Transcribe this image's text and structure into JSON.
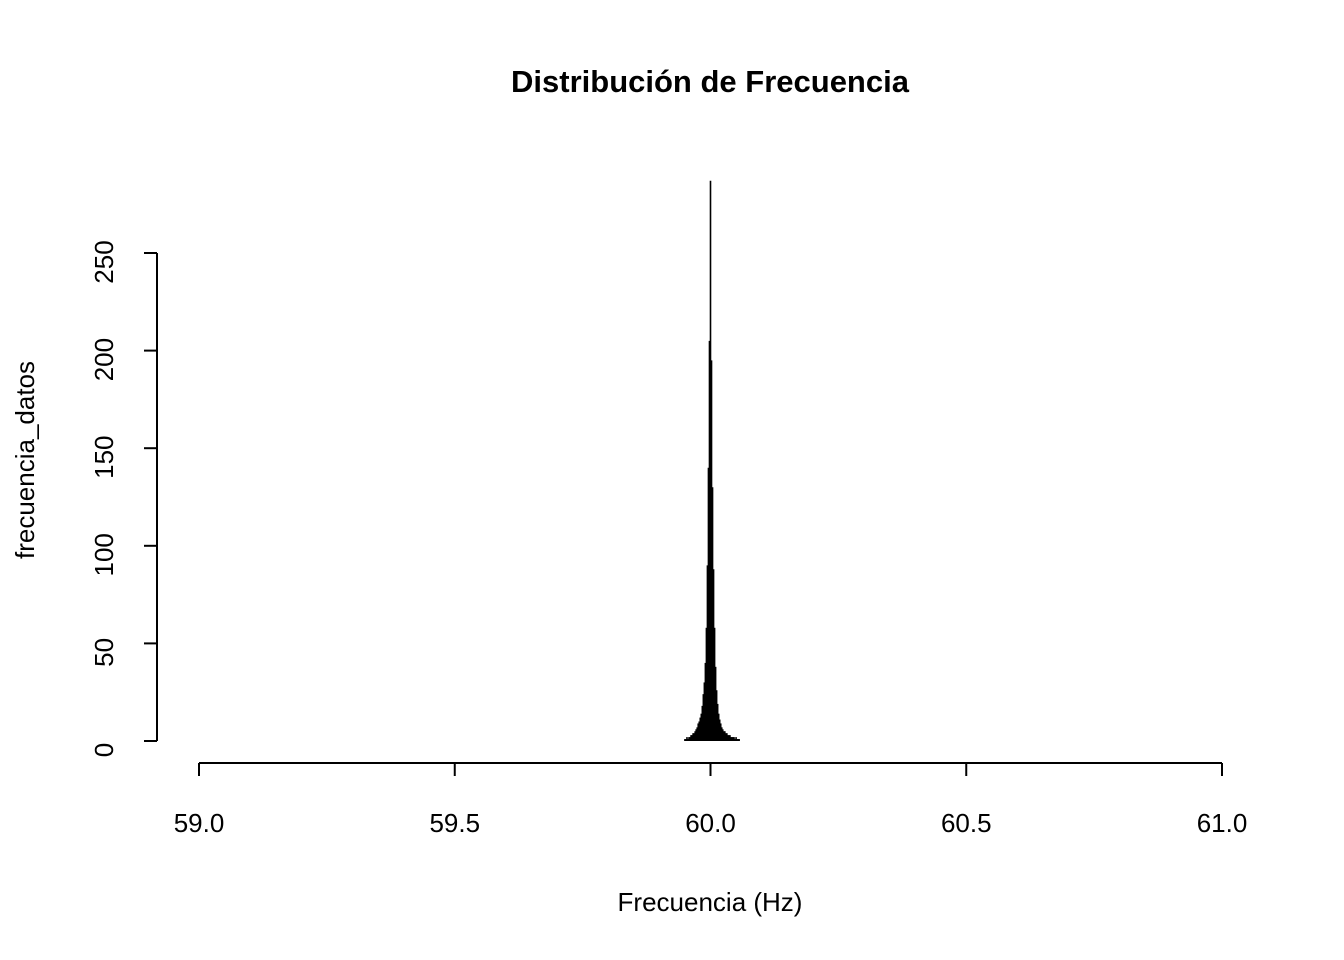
{
  "chart_data": {
    "type": "spike",
    "title": "Distribución de Frecuencia",
    "x_label": "Frecuencia (Hz)",
    "y_label": "frecuencia_datos",
    "color": "#000000",
    "x": [
      59.95,
      59.952,
      59.954,
      59.956,
      59.958,
      59.96,
      59.962,
      59.964,
      59.966,
      59.968,
      59.97,
      59.972,
      59.974,
      59.976,
      59.978,
      59.98,
      59.982,
      59.984,
      59.986,
      59.988,
      59.99,
      59.992,
      59.994,
      59.996,
      59.998,
      60.0,
      60.002,
      60.004,
      60.006,
      60.008,
      60.01,
      60.012,
      60.014,
      60.016,
      60.018,
      60.02,
      60.022,
      60.024,
      60.026,
      60.028,
      60.03,
      60.032,
      60.034,
      60.036,
      60.038,
      60.04,
      60.042,
      60.044,
      60.046,
      60.048,
      60.05,
      60.052,
      60.054,
      60.056
    ],
    "values": [
      1,
      1,
      2,
      1,
      2,
      2,
      3,
      3,
      4,
      4,
      5,
      6,
      7,
      9,
      10,
      12,
      14,
      18,
      24,
      30,
      40,
      58,
      90,
      140,
      205,
      287,
      195,
      130,
      88,
      58,
      38,
      26,
      19,
      14,
      11,
      9,
      7,
      6,
      5,
      5,
      4,
      4,
      3,
      3,
      3,
      2,
      2,
      2,
      2,
      1,
      2,
      1,
      1,
      1
    ],
    "xlim": [
      59,
      61
    ],
    "xticks": [
      {
        "value": 59,
        "label": "59.0"
      },
      {
        "value": 59.5,
        "label": "59.5"
      },
      {
        "value": 60,
        "label": "60.0"
      },
      {
        "value": 60.5,
        "label": "60.5"
      },
      {
        "value": 61,
        "label": "61.0"
      }
    ],
    "ylim": [
      0,
      250
    ],
    "yticks": [
      0,
      50,
      100,
      150,
      200,
      250
    ]
  }
}
